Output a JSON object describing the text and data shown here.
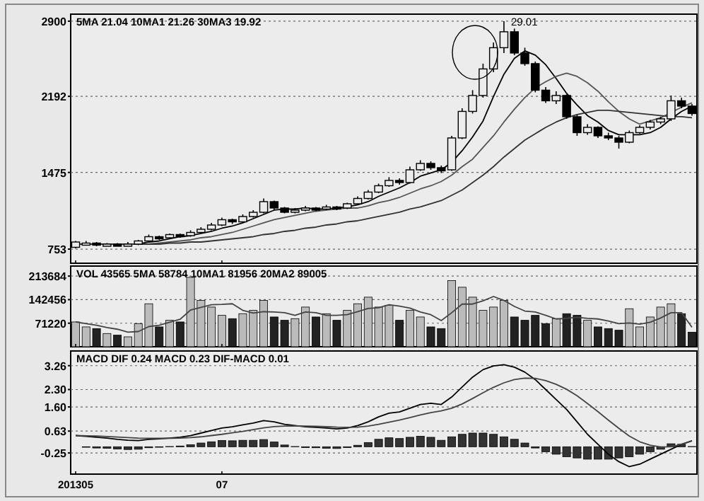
{
  "chart_data": [
    {
      "type": "candlestick",
      "tick_labels": "y",
      "grid": "y",
      "annotations": [
        "5MA 21.04  10MA1 21.26  30MA3 19.92",
        "29.01"
      ],
      "categories": [
        "201305",
        null,
        null,
        null,
        null,
        null,
        null,
        null,
        null,
        null,
        null,
        null,
        null,
        null,
        "07",
        null,
        null,
        null,
        null,
        null,
        null,
        null,
        null,
        null,
        null,
        null,
        null,
        null,
        null,
        null,
        null,
        null,
        null,
        null,
        null,
        null,
        null,
        null,
        null,
        null,
        null,
        null,
        null,
        null,
        null,
        null,
        null,
        null,
        null,
        null,
        null,
        null,
        null,
        null,
        null,
        null,
        null,
        null,
        null,
        null
      ],
      "ylim": [
        620,
        2966
      ],
      "yticks": [
        753,
        1475,
        2192,
        2900
      ],
      "ohlc": [
        [
          770,
          830,
          760,
          820
        ],
        [
          800,
          830,
          790,
          810
        ],
        [
          810,
          820,
          780,
          790
        ],
        [
          790,
          810,
          780,
          800
        ],
        [
          800,
          810,
          780,
          790
        ],
        [
          790,
          820,
          780,
          800
        ],
        [
          800,
          840,
          790,
          830
        ],
        [
          830,
          890,
          820,
          870
        ],
        [
          870,
          880,
          840,
          860
        ],
        [
          860,
          900,
          850,
          890
        ],
        [
          890,
          900,
          860,
          880
        ],
        [
          880,
          930,
          870,
          910
        ],
        [
          910,
          960,
          900,
          940
        ],
        [
          940,
          1000,
          930,
          980
        ],
        [
          980,
          1050,
          970,
          1030
        ],
        [
          1030,
          1040,
          990,
          1010
        ],
        [
          1010,
          1080,
          1000,
          1060
        ],
        [
          1060,
          1120,
          1050,
          1100
        ],
        [
          1100,
          1230,
          1090,
          1200
        ],
        [
          1200,
          1210,
          1120,
          1140
        ],
        [
          1140,
          1150,
          1090,
          1100
        ],
        [
          1100,
          1140,
          1090,
          1120
        ],
        [
          1120,
          1160,
          1110,
          1140
        ],
        [
          1140,
          1150,
          1110,
          1130
        ],
        [
          1130,
          1170,
          1120,
          1150
        ],
        [
          1150,
          1160,
          1120,
          1140
        ],
        [
          1140,
          1190,
          1130,
          1180
        ],
        [
          1180,
          1250,
          1170,
          1230
        ],
        [
          1230,
          1310,
          1220,
          1290
        ],
        [
          1290,
          1370,
          1280,
          1350
        ],
        [
          1350,
          1430,
          1340,
          1400
        ],
        [
          1400,
          1420,
          1360,
          1380
        ],
        [
          1380,
          1530,
          1370,
          1500
        ],
        [
          1500,
          1590,
          1490,
          1560
        ],
        [
          1560,
          1580,
          1500,
          1520
        ],
        [
          1520,
          1540,
          1470,
          1490
        ],
        [
          1500,
          1820,
          1490,
          1800
        ],
        [
          1800,
          2080,
          1790,
          2050
        ],
        [
          2050,
          2250,
          2030,
          2200
        ],
        [
          2200,
          2500,
          2180,
          2450
        ],
        [
          2450,
          2700,
          2420,
          2650
        ],
        [
          2650,
          2900,
          2600,
          2800
        ],
        [
          2800,
          2830,
          2580,
          2600
        ],
        [
          2600,
          2650,
          2480,
          2500
        ],
        [
          2500,
          2520,
          2230,
          2250
        ],
        [
          2250,
          2280,
          2130,
          2150
        ],
        [
          2150,
          2240,
          2120,
          2200
        ],
        [
          2200,
          2210,
          1980,
          2000
        ],
        [
          2000,
          2020,
          1820,
          1850
        ],
        [
          1850,
          1930,
          1830,
          1900
        ],
        [
          1900,
          1910,
          1800,
          1820
        ],
        [
          1820,
          1850,
          1780,
          1800
        ],
        [
          1800,
          1820,
          1700,
          1760
        ],
        [
          1760,
          1870,
          1750,
          1850
        ],
        [
          1850,
          1920,
          1840,
          1900
        ],
        [
          1900,
          1970,
          1880,
          1950
        ],
        [
          1950,
          2000,
          1930,
          1980
        ],
        [
          1980,
          2200,
          1960,
          2150
        ],
        [
          2150,
          2180,
          2080,
          2100
        ],
        [
          2100,
          2120,
          2010,
          2030
        ]
      ],
      "series": [
        {
          "type": "line",
          "color": "#000000",
          "values": [
            800,
            800,
            800,
            800,
            800,
            800,
            800,
            820,
            830,
            850,
            870,
            880,
            900,
            920,
            950,
            970,
            1000,
            1040,
            1080,
            1120,
            1130,
            1130,
            1140,
            1130,
            1130,
            1140,
            1150,
            1170,
            1200,
            1250,
            1290,
            1330,
            1380,
            1440,
            1470,
            1500,
            1570,
            1680,
            1810,
            1960,
            2190,
            2400,
            2550,
            2620,
            2580,
            2490,
            2360,
            2220,
            2110,
            2010,
            1950,
            1870,
            1830,
            1830,
            1830,
            1850,
            1900,
            1980,
            2050,
            2100
          ]
        },
        {
          "type": "line",
          "color": "#555555",
          "values": [
            800,
            800,
            800,
            800,
            800,
            800,
            800,
            800,
            810,
            820,
            830,
            840,
            860,
            870,
            890,
            910,
            940,
            970,
            1000,
            1030,
            1050,
            1070,
            1090,
            1110,
            1120,
            1130,
            1140,
            1140,
            1160,
            1190,
            1210,
            1240,
            1280,
            1320,
            1350,
            1390,
            1450,
            1530,
            1600,
            1710,
            1820,
            1950,
            2070,
            2180,
            2270,
            2330,
            2380,
            2410,
            2380,
            2320,
            2240,
            2140,
            2050,
            1980,
            1930,
            1960,
            1990,
            2040,
            2090,
            2130
          ]
        },
        {
          "type": "line",
          "color": "#333333",
          "values": [
            800,
            800,
            800,
            800,
            800,
            800,
            800,
            800,
            800,
            810,
            810,
            820,
            820,
            830,
            840,
            850,
            860,
            870,
            890,
            900,
            920,
            930,
            950,
            960,
            980,
            990,
            1010,
            1020,
            1040,
            1060,
            1080,
            1100,
            1130,
            1150,
            1180,
            1210,
            1260,
            1310,
            1380,
            1450,
            1530,
            1620,
            1700,
            1780,
            1840,
            1900,
            1950,
            1990,
            2020,
            2040,
            2060,
            2060,
            2050,
            2040,
            2030,
            2020,
            2010,
            2000,
            2000,
            1990
          ]
        }
      ]
    },
    {
      "type": "bar",
      "tick_labels": "y",
      "grid": "y",
      "annotations": [
        "VOL 43565  5MA 58784  10MA1 81956  20MA2 89005"
      ],
      "categories": [
        "201305",
        null,
        null,
        null,
        null,
        null,
        null,
        null,
        null,
        null,
        null,
        null,
        null,
        null,
        "07",
        null,
        null,
        null,
        null,
        null,
        null,
        null,
        null,
        null,
        null,
        null,
        null,
        null,
        null,
        null,
        null,
        null,
        null,
        null,
        null,
        null,
        null,
        null,
        null,
        null,
        null,
        null,
        null,
        null,
        null,
        null,
        null,
        null,
        null,
        null,
        null,
        null,
        null,
        null,
        null,
        null,
        null,
        null,
        null,
        null
      ],
      "ylim": [
        0,
        244000
      ],
      "yticks": [
        71220,
        142456,
        213684
      ],
      "series": [
        {
          "type": "bar",
          "values": [
            75000,
            60000,
            55000,
            40000,
            35000,
            30000,
            70000,
            130000,
            60000,
            80000,
            75000,
            210000,
            140000,
            120000,
            95000,
            85000,
            100000,
            110000,
            140000,
            90000,
            80000,
            85000,
            120000,
            90000,
            100000,
            80000,
            110000,
            130000,
            150000,
            120000,
            125000,
            80000,
            110000,
            90000,
            60000,
            55000,
            200000,
            180000,
            150000,
            110000,
            120000,
            140000,
            90000,
            80000,
            95000,
            70000,
            85000,
            100000,
            95000,
            80000,
            60000,
            55000,
            50000,
            115000,
            60000,
            90000,
            120000,
            130000,
            100000,
            44000
          ],
          "colors": [
            "#bbbbbb",
            "#bbbbbb",
            "#222222",
            "#bbbbbb",
            "#222222",
            "#bbbbbb",
            "#bbbbbb",
            "#bbbbbb",
            "#222222",
            "#bbbbbb",
            "#222222",
            "#bbbbbb",
            "#bbbbbb",
            "#bbbbbb",
            "#bbbbbb",
            "#222222",
            "#bbbbbb",
            "#bbbbbb",
            "#bbbbbb",
            "#222222",
            "#222222",
            "#bbbbbb",
            "#bbbbbb",
            "#222222",
            "#bbbbbb",
            "#222222",
            "#bbbbbb",
            "#bbbbbb",
            "#bbbbbb",
            "#bbbbbb",
            "#bbbbbb",
            "#222222",
            "#bbbbbb",
            "#bbbbbb",
            "#222222",
            "#222222",
            "#bbbbbb",
            "#bbbbbb",
            "#bbbbbb",
            "#bbbbbb",
            "#bbbbbb",
            "#bbbbbb",
            "#222222",
            "#222222",
            "#222222",
            "#222222",
            "#bbbbbb",
            "#222222",
            "#222222",
            "#bbbbbb",
            "#222222",
            "#222222",
            "#222222",
            "#bbbbbb",
            "#bbbbbb",
            "#bbbbbb",
            "#bbbbbb",
            "#bbbbbb",
            "#222222",
            "#222222"
          ]
        },
        {
          "type": "line",
          "color": "#444444",
          "values": [
            75000,
            70000,
            65000,
            58000,
            53000,
            44000,
            46000,
            61000,
            65000,
            74000,
            83000,
            111000,
            119000,
            127000,
            128000,
            130000,
            110000,
            102000,
            106000,
            105000,
            103000,
            95000,
            105000,
            103000,
            95000,
            95000,
            97000,
            106000,
            116000,
            118000,
            127000,
            123000,
            117000,
            105000,
            97000,
            79000,
            103000,
            129000,
            129000,
            139000,
            152000,
            140000,
            122000,
            108000,
            105000,
            95000,
            84000,
            86000,
            89000,
            86000,
            84000,
            78000,
            70000,
            72000,
            68000,
            74000,
            87000,
            103000,
            103000,
            59000
          ]
        }
      ]
    },
    {
      "type": "line",
      "grid": "y",
      "annotations": [
        "MACD  DIF 0.24  MACD 0.23  DIF-MACD 0.01"
      ],
      "categories": [
        "201305",
        null,
        null,
        null,
        null,
        null,
        null,
        null,
        null,
        null,
        null,
        null,
        null,
        null,
        "07",
        null,
        null,
        null,
        null,
        null,
        null,
        null,
        null,
        null,
        null,
        null,
        null,
        null,
        null,
        null,
        null,
        null,
        null,
        null,
        null,
        null,
        null,
        null,
        null,
        null,
        null,
        null,
        null,
        null,
        null,
        null,
        null,
        null,
        null,
        null,
        null,
        null,
        null,
        null,
        null,
        null,
        null,
        null,
        null,
        null
      ],
      "ylim": [
        -1.1,
        3.85
      ],
      "yticks": [
        -0.25,
        0.63,
        {
          "value": 1.6,
          "label": "1.60"
        },
        {
          "value": 2.3,
          "label": "2.30"
        },
        3.26
      ],
      "series": [
        {
          "type": "bar",
          "color": "#333333",
          "values": [
            0,
            -0.02,
            -0.05,
            -0.06,
            -0.09,
            -0.11,
            -0.1,
            -0.04,
            -0.02,
            0.01,
            0.03,
            0.08,
            0.15,
            0.2,
            0.25,
            0.24,
            0.26,
            0.26,
            0.29,
            0.19,
            0.07,
            0.01,
            -0.03,
            -0.04,
            -0.06,
            -0.07,
            -0.03,
            0.06,
            0.17,
            0.3,
            0.36,
            0.33,
            0.38,
            0.42,
            0.38,
            0.26,
            0.4,
            0.5,
            0.55,
            0.55,
            0.5,
            0.4,
            0.3,
            0.15,
            -0.05,
            -0.2,
            -0.3,
            -0.4,
            -0.45,
            -0.5,
            -0.5,
            -0.5,
            -0.45,
            -0.4,
            -0.3,
            -0.2,
            -0.1,
            0.12,
            0.1,
            0.01
          ]
        },
        {
          "type": "line",
          "color": "#000000",
          "values": [
            0.45,
            0.42,
            0.38,
            0.35,
            0.3,
            0.26,
            0.25,
            0.3,
            0.32,
            0.35,
            0.38,
            0.45,
            0.55,
            0.65,
            0.75,
            0.8,
            0.88,
            0.95,
            1.05,
            1.0,
            0.9,
            0.85,
            0.8,
            0.78,
            0.75,
            0.72,
            0.75,
            0.85,
            1.0,
            1.2,
            1.35,
            1.4,
            1.55,
            1.7,
            1.75,
            1.7,
            2.0,
            2.4,
            2.8,
            3.1,
            3.25,
            3.3,
            3.2,
            3.0,
            2.7,
            2.3,
            1.9,
            1.5,
            1.0,
            0.5,
            0.1,
            -0.3,
            -0.6,
            -0.8,
            -0.7,
            -0.5,
            -0.3,
            -0.1,
            0.1,
            0.24
          ]
        },
        {
          "type": "line",
          "color": "#444444",
          "values": [
            0.45,
            0.44,
            0.43,
            0.41,
            0.39,
            0.37,
            0.35,
            0.34,
            0.34,
            0.34,
            0.35,
            0.37,
            0.4,
            0.45,
            0.5,
            0.56,
            0.62,
            0.69,
            0.76,
            0.81,
            0.83,
            0.84,
            0.83,
            0.82,
            0.81,
            0.79,
            0.78,
            0.79,
            0.83,
            0.9,
            0.99,
            1.07,
            1.17,
            1.28,
            1.37,
            1.44,
            1.55,
            1.72,
            1.94,
            2.17,
            2.39,
            2.57,
            2.7,
            2.76,
            2.75,
            2.66,
            2.51,
            2.31,
            2.05,
            1.74,
            1.41,
            1.07,
            0.74,
            0.43,
            0.2,
            0.06,
            -0.01,
            0.0,
            0.1,
            0.23
          ]
        }
      ]
    }
  ]
}
